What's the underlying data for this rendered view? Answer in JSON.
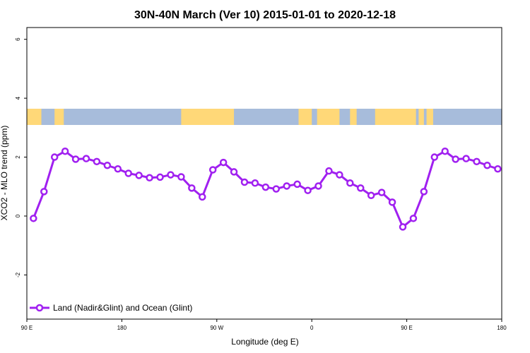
{
  "chart_data": {
    "type": "line",
    "title": "30N-40N March (Ver 10)   2015-01-01 to 2020-12-18",
    "xlabel": "Longitude (deg E)",
    "ylabel": "XCO2 - MLO trend (ppm)",
    "xlim": [
      90,
      450
    ],
    "ylim": [
      -3.5,
      6.4
    ],
    "x_ticks": [
      90,
      162,
      234,
      306,
      378,
      450
    ],
    "x_tick_labels": [
      "90 E",
      "180",
      "90 W",
      "0",
      "90 E",
      "180"
    ],
    "y_ticks": [
      -2,
      0,
      2,
      4,
      6
    ],
    "grid": false,
    "legend_position": "bottom-left",
    "line_color": "#a020f0",
    "land_color": "#ffd878",
    "ocean_color": "#a7bcdb",
    "series": [
      {
        "name": "Land (Nadir&Glint) and Ocean (Glint)",
        "x": [
          95,
          103,
          111,
          119,
          127,
          135,
          143,
          151,
          159,
          167,
          175,
          183,
          191,
          199,
          207,
          215,
          223,
          231,
          239,
          247,
          255,
          263,
          271,
          279,
          287,
          295,
          303,
          311,
          319,
          327,
          335,
          343,
          351,
          359,
          367,
          375,
          383,
          391,
          399,
          407,
          415,
          423,
          431,
          439,
          447
        ],
        "values": [
          -0.08,
          0.83,
          2.0,
          2.2,
          1.93,
          1.95,
          1.85,
          1.72,
          1.6,
          1.45,
          1.38,
          1.3,
          1.32,
          1.4,
          1.33,
          0.95,
          0.65,
          1.57,
          1.82,
          1.5,
          1.15,
          1.12,
          0.98,
          0.92,
          1.02,
          1.08,
          0.87,
          1.02,
          1.53,
          1.4,
          1.12,
          0.95,
          0.7,
          0.8,
          0.47,
          -0.37,
          -0.08,
          0.83,
          2.0,
          2.2,
          1.93,
          1.95,
          1.85,
          1.72,
          1.6
        ]
      }
    ]
  }
}
